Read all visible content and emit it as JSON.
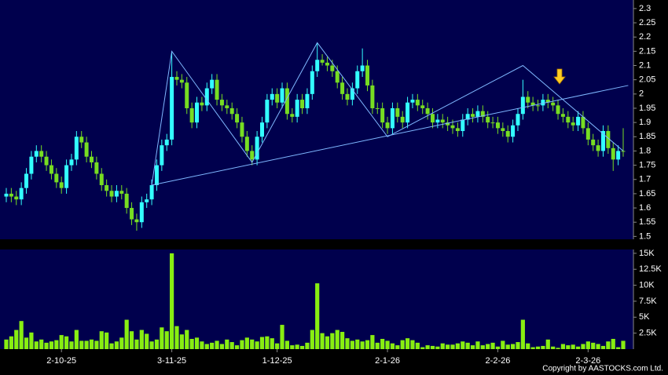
{
  "chart_data": {
    "type": "candlestick",
    "categories": [
      null,
      null,
      null,
      null,
      null,
      null,
      null,
      null,
      null,
      null,
      null,
      "2-10-25",
      null,
      null,
      null,
      null,
      null,
      null,
      null,
      null,
      null,
      null,
      null,
      null,
      null,
      null,
      null,
      null,
      null,
      null,
      null,
      null,
      null,
      "3-11-25",
      null,
      null,
      null,
      null,
      null,
      null,
      null,
      null,
      null,
      null,
      null,
      null,
      null,
      null,
      null,
      null,
      null,
      null,
      null,
      null,
      "1-12-25",
      null,
      null,
      null,
      null,
      null,
      null,
      null,
      null,
      null,
      null,
      null,
      null,
      null,
      null,
      null,
      null,
      null,
      null,
      null,
      null,
      null,
      "2-1-26",
      null,
      null,
      null,
      null,
      null,
      null,
      null,
      null,
      null,
      null,
      null,
      null,
      null,
      null,
      null,
      null,
      null,
      null,
      null,
      null,
      null,
      "2-2-26",
      null,
      null,
      null,
      null,
      null,
      null,
      null,
      null,
      null,
      null,
      null,
      null,
      null,
      null,
      null,
      null,
      null,
      "2-3-26",
      null,
      null,
      null,
      null,
      null,
      null,
      null
    ],
    "open": [
      1.64,
      1.65,
      1.64,
      1.63,
      1.67,
      1.72,
      1.78,
      1.8,
      1.78,
      1.75,
      1.72,
      1.69,
      1.67,
      1.75,
      1.77,
      1.85,
      1.83,
      1.78,
      1.76,
      1.72,
      1.68,
      1.66,
      1.64,
      1.66,
      1.65,
      1.6,
      1.56,
      1.55,
      1.62,
      1.63,
      1.68,
      1.75,
      1.82,
      1.84,
      2.06,
      2.05,
      2.04,
      1.95,
      1.9,
      1.97,
      1.96,
      2.02,
      2.05,
      1.98,
      1.96,
      1.95,
      1.93,
      1.9,
      1.85,
      1.8,
      1.77,
      1.85,
      1.9,
      1.98,
      2.0,
      1.97,
      2.02,
      1.93,
      1.92,
      1.98,
      1.95,
      2.0,
      2.08,
      2.12,
      2.11,
      2.1,
      2.08,
      2.04,
      2.0,
      1.98,
      2.02,
      2.08,
      2.1,
      2.03,
      1.95,
      1.95,
      1.9,
      1.88,
      1.95,
      1.92,
      1.9,
      1.97,
      1.98,
      1.96,
      1.95,
      1.93,
      1.9,
      1.91,
      1.9,
      1.89,
      1.88,
      1.87,
      1.91,
      1.93,
      1.92,
      1.94,
      1.92,
      1.9,
      1.9,
      1.88,
      1.87,
      1.85,
      1.89,
      1.93,
      1.99,
      1.97,
      1.96,
      1.96,
      1.98,
      1.97,
      1.96,
      1.93,
      1.92,
      1.9,
      1.89,
      1.92,
      1.88,
      1.84,
      1.82,
      1.8,
      1.87,
      1.81,
      1.77,
      1.8
    ],
    "high": [
      1.67,
      1.67,
      1.66,
      1.69,
      1.74,
      1.8,
      1.82,
      1.82,
      1.8,
      1.77,
      1.74,
      1.71,
      1.77,
      1.79,
      1.87,
      1.87,
      1.85,
      1.8,
      1.78,
      1.74,
      1.7,
      1.68,
      1.68,
      1.68,
      1.67,
      1.62,
      1.58,
      1.64,
      1.65,
      1.7,
      1.77,
      1.84,
      1.86,
      2.15,
      2.08,
      2.07,
      2.06,
      1.97,
      1.99,
      1.99,
      2.04,
      2.07,
      2.07,
      2.0,
      1.98,
      1.97,
      1.95,
      1.92,
      1.87,
      1.82,
      1.87,
      1.92,
      2.0,
      2.02,
      2.02,
      2.04,
      2.04,
      1.95,
      2.0,
      2.0,
      2.02,
      2.1,
      2.18,
      2.14,
      2.13,
      2.12,
      2.1,
      2.06,
      2.02,
      2.04,
      2.1,
      2.16,
      2.12,
      2.05,
      1.97,
      1.97,
      1.92,
      1.97,
      1.97,
      1.94,
      1.99,
      2.0,
      2.0,
      1.98,
      1.97,
      1.95,
      1.93,
      1.93,
      1.92,
      1.91,
      1.9,
      1.93,
      1.95,
      1.95,
      1.96,
      1.96,
      1.94,
      1.92,
      1.92,
      1.9,
      1.89,
      1.91,
      1.95,
      2.05,
      2.01,
      1.99,
      1.98,
      2.0,
      2.0,
      1.99,
      1.98,
      1.95,
      1.94,
      1.92,
      1.94,
      1.94,
      1.9,
      1.86,
      1.84,
      1.89,
      1.89,
      1.83,
      1.82,
      1.88
    ],
    "low": [
      1.62,
      1.62,
      1.61,
      1.61,
      1.65,
      1.7,
      1.76,
      1.76,
      1.73,
      1.7,
      1.67,
      1.65,
      1.65,
      1.73,
      1.75,
      1.81,
      1.76,
      1.74,
      1.7,
      1.66,
      1.64,
      1.62,
      1.62,
      1.63,
      1.58,
      1.54,
      1.52,
      1.53,
      1.6,
      1.61,
      1.66,
      1.73,
      1.8,
      1.82,
      2.03,
      2.02,
      1.93,
      1.88,
      1.88,
      1.94,
      1.94,
      2.0,
      1.96,
      1.94,
      1.93,
      1.91,
      1.88,
      1.83,
      1.78,
      1.75,
      1.75,
      1.83,
      1.88,
      1.96,
      1.95,
      1.95,
      1.91,
      1.9,
      1.9,
      1.93,
      1.93,
      1.98,
      2.06,
      2.1,
      2.08,
      2.06,
      2.02,
      1.98,
      1.96,
      1.96,
      2.0,
      2.06,
      2.01,
      1.93,
      1.93,
      1.88,
      1.86,
      1.86,
      1.9,
      1.88,
      1.88,
      1.95,
      1.94,
      1.93,
      1.91,
      1.88,
      1.88,
      1.88,
      1.87,
      1.86,
      1.85,
      1.85,
      1.89,
      1.9,
      1.9,
      1.9,
      1.88,
      1.88,
      1.86,
      1.85,
      1.83,
      1.83,
      1.87,
      1.91,
      1.95,
      1.94,
      1.94,
      1.94,
      1.95,
      1.94,
      1.91,
      1.9,
      1.88,
      1.87,
      1.87,
      1.86,
      1.82,
      1.8,
      1.78,
      1.78,
      1.79,
      1.73,
      1.75,
      1.78
    ],
    "close": [
      1.65,
      1.64,
      1.63,
      1.67,
      1.72,
      1.78,
      1.8,
      1.78,
      1.75,
      1.72,
      1.69,
      1.67,
      1.75,
      1.77,
      1.85,
      1.83,
      1.78,
      1.76,
      1.72,
      1.68,
      1.66,
      1.64,
      1.66,
      1.65,
      1.6,
      1.56,
      1.55,
      1.62,
      1.63,
      1.68,
      1.75,
      1.82,
      1.84,
      2.06,
      2.05,
      2.04,
      1.95,
      1.9,
      1.97,
      1.96,
      2.02,
      2.05,
      1.98,
      1.96,
      1.95,
      1.93,
      1.9,
      1.85,
      1.8,
      1.77,
      1.85,
      1.9,
      1.98,
      2.0,
      1.97,
      2.02,
      1.93,
      1.92,
      1.98,
      1.95,
      2.0,
      2.08,
      2.12,
      2.11,
      2.1,
      2.08,
      2.04,
      2.0,
      1.98,
      2.02,
      2.08,
      2.1,
      2.03,
      1.95,
      1.95,
      1.9,
      1.88,
      1.95,
      1.92,
      1.9,
      1.97,
      1.98,
      1.96,
      1.95,
      1.93,
      1.9,
      1.91,
      1.9,
      1.89,
      1.88,
      1.87,
      1.91,
      1.93,
      1.92,
      1.94,
      1.92,
      1.9,
      1.9,
      1.88,
      1.87,
      1.85,
      1.89,
      1.93,
      1.99,
      1.97,
      1.96,
      1.96,
      1.98,
      1.97,
      1.96,
      1.93,
      1.92,
      1.9,
      1.89,
      1.92,
      1.88,
      1.84,
      1.82,
      1.8,
      1.87,
      1.81,
      1.77,
      1.8,
      1.8
    ],
    "up_color": "#33ffff",
    "down_color": "#77dd22",
    "ylim": [
      1.49,
      2.33
    ],
    "yticks": [
      1.5,
      1.55,
      1.6,
      1.65,
      1.7,
      1.75,
      1.8,
      1.85,
      1.9,
      1.95,
      2,
      2.05,
      2.1,
      2.15,
      2.2,
      2.25,
      2.3
    ],
    "trend_line_color": "#7fb8ff",
    "trend_lines": [
      {
        "x": [
          29,
          33,
          49,
          62,
          76,
          103,
          123
        ],
        "y": [
          1.68,
          2.15,
          1.76,
          2.18,
          1.85,
          2.1,
          1.8
        ]
      },
      {
        "x": [
          29,
          124
        ],
        "y": [
          1.68,
          2.03
        ]
      }
    ],
    "volume": {
      "color": "#88ee11",
      "values": [
        1500,
        2000,
        3000,
        4400,
        1800,
        2600,
        1200,
        1500,
        1000,
        1200,
        1400,
        2200,
        2000,
        1200,
        3000,
        1300,
        1300,
        1500,
        1300,
        2800,
        2600,
        900,
        1200,
        1800,
        4600,
        2800,
        1500,
        3000,
        2400,
        1200,
        1500,
        3400,
        2800,
        15000,
        3600,
        2300,
        3000,
        1600,
        1800,
        1200,
        800,
        1000,
        1300,
        800,
        1500,
        1100,
        600,
        1400,
        1800,
        1500,
        1200,
        1900,
        2000,
        1700,
        900,
        3800,
        1300,
        600,
        700,
        500,
        1000,
        3000,
        10300,
        2500,
        2000,
        2500,
        3000,
        2700,
        1700,
        1300,
        1500,
        1200,
        1400,
        2200,
        1000,
        1600,
        1300,
        900,
        600,
        1400,
        1700,
        1400,
        1000,
        300,
        600,
        500,
        400,
        900,
        700,
        700,
        900,
        1200,
        1000,
        600,
        1200,
        600,
        800,
        1000,
        400,
        1300,
        700,
        800,
        1100,
        4600,
        900,
        300,
        400,
        500,
        1500,
        400,
        200,
        800,
        600,
        700,
        400,
        800,
        1200,
        1000,
        800,
        500,
        1200,
        1600,
        300,
        1300
      ],
      "ylim": [
        0,
        15600
      ],
      "yticks": [
        {
          "value": 2500,
          "label": "2.5K"
        },
        {
          "value": 5000,
          "label": "5K"
        },
        {
          "value": 7500,
          "label": "7.5K"
        },
        {
          "value": 10000,
          "label": "10K"
        },
        {
          "value": 12500,
          "label": "12.5K"
        },
        {
          "value": 15000,
          "label": "15K"
        }
      ]
    }
  },
  "footer": {
    "copyright": "Copyright by AASTOCKS.com Ltd."
  }
}
